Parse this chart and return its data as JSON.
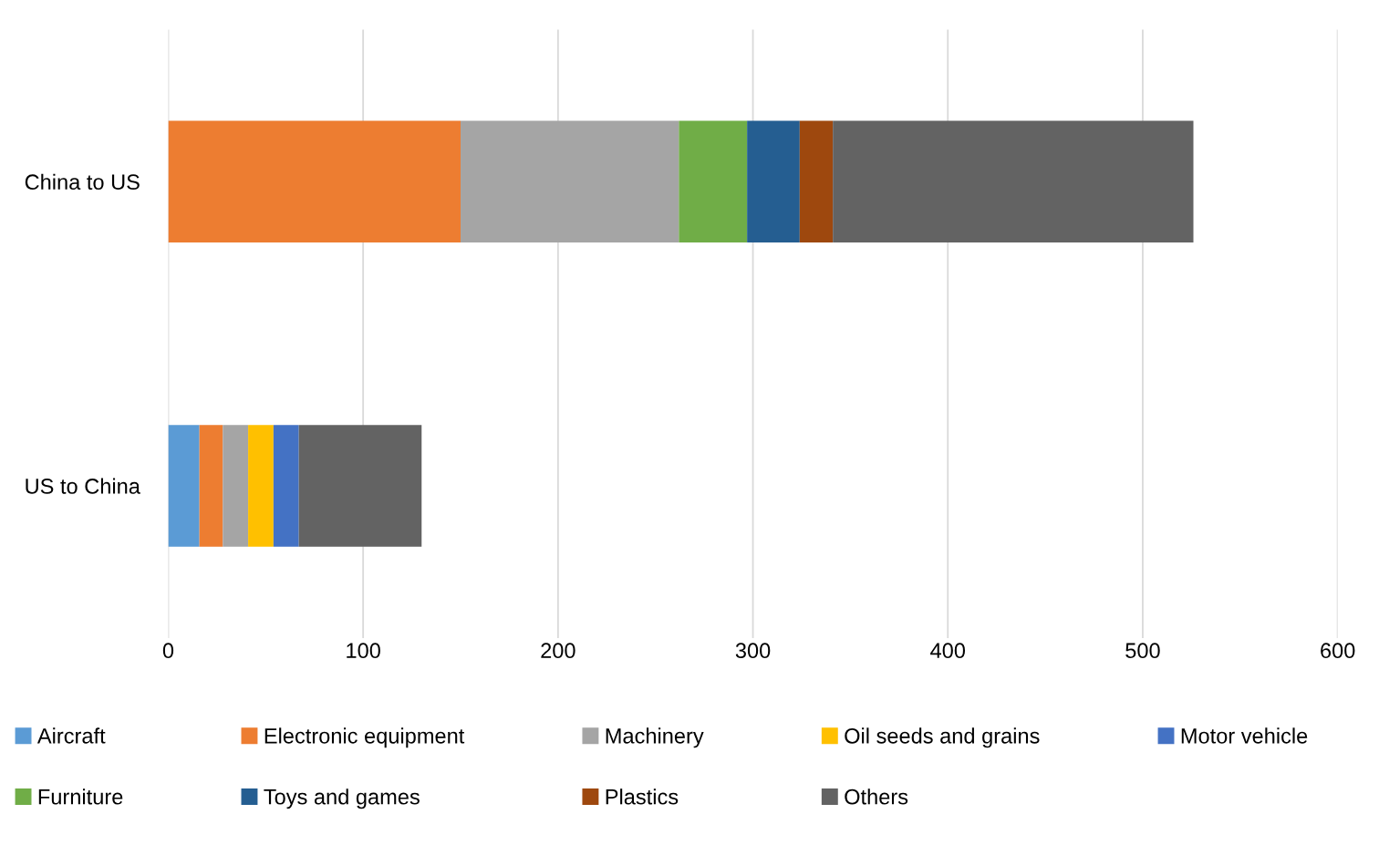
{
  "chart_data": {
    "type": "bar",
    "orientation": "horizontal",
    "stacked": true,
    "categories": [
      "China to US",
      "US to China"
    ],
    "series": [
      {
        "name": "Aircraft",
        "color": "#5b9bd5",
        "values": [
          null,
          16
        ]
      },
      {
        "name": "Electronic equipment",
        "color": "#ed7d31",
        "values": [
          150,
          12
        ]
      },
      {
        "name": "Machinery",
        "color": "#a5a5a5",
        "values": [
          112,
          13
        ]
      },
      {
        "name": "Oil seeds and grains",
        "color": "#ffc000",
        "values": [
          null,
          13
        ]
      },
      {
        "name": "Motor vehicle",
        "color": "#4472c4",
        "values": [
          null,
          13
        ]
      },
      {
        "name": "Furniture",
        "color": "#70ad47",
        "values": [
          35,
          null
        ]
      },
      {
        "name": "Toys and games",
        "color": "#255e91",
        "values": [
          27,
          null
        ]
      },
      {
        "name": "Plastics",
        "color": "#9e480e",
        "values": [
          17,
          null
        ]
      },
      {
        "name": "Others",
        "color": "#636363",
        "values": [
          185,
          63
        ]
      }
    ],
    "xlim": [
      0,
      600
    ],
    "xticks": [
      0,
      100,
      200,
      300,
      400,
      500,
      600
    ],
    "grid": "x",
    "legend": "bottom"
  }
}
